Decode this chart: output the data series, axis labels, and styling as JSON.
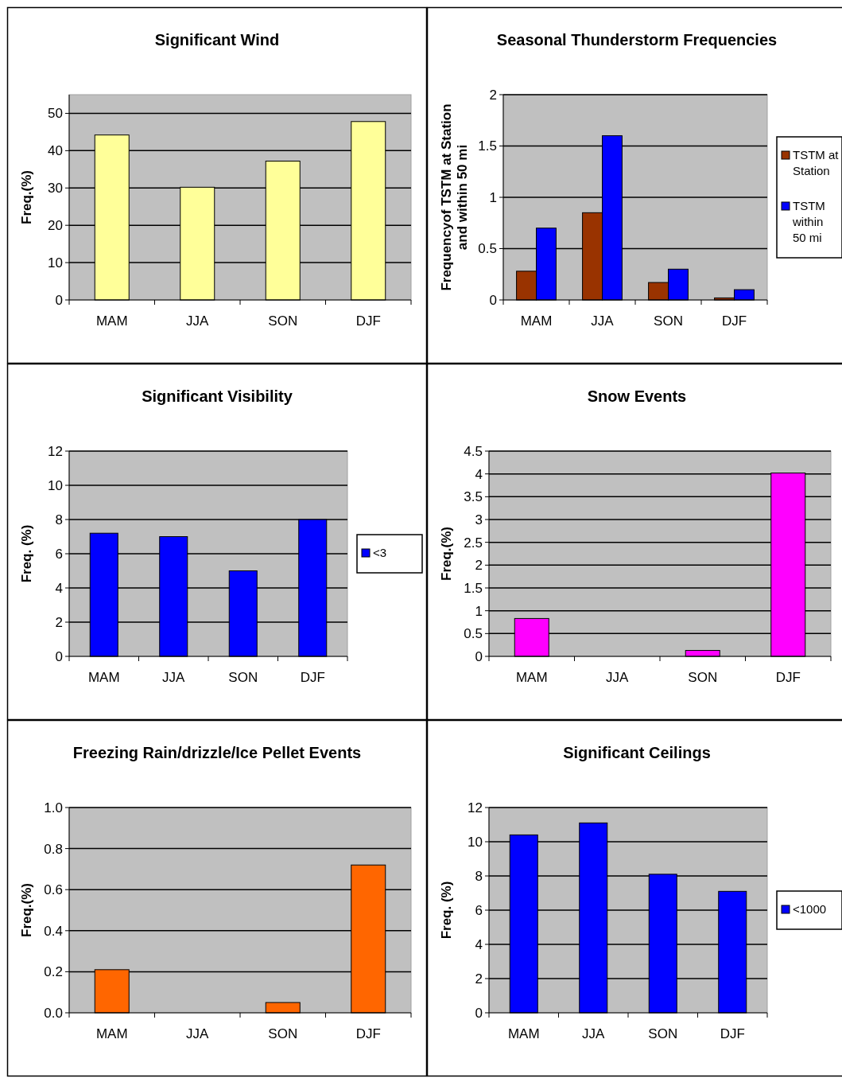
{
  "chart_data": [
    {
      "type": "bar",
      "title": "Significant Wind",
      "ylabel": "Freq.(%)",
      "categories": [
        "MAM",
        "JJA",
        "SON",
        "DJF"
      ],
      "series": [
        {
          "color": "#ffff99",
          "values": [
            44.2,
            30.2,
            37.2,
            47.8
          ]
        }
      ],
      "ylim": [
        0,
        55
      ],
      "yticks": [
        0,
        10,
        20,
        30,
        40,
        50
      ],
      "grid": "y",
      "legend": false
    },
    {
      "type": "bar",
      "title": "Seasonal Thunderstorm Frequencies",
      "ylabel": "Frequencyof TSTM at Station and within 50 mi",
      "categories": [
        "MAM",
        "JJA",
        "SON",
        "DJF"
      ],
      "series": [
        {
          "name": "TSTM at Station",
          "color": "#993300",
          "values": [
            0.28,
            0.85,
            0.17,
            0.02
          ]
        },
        {
          "name": "TSTM within 50 mi",
          "color": "#0000ff",
          "values": [
            0.7,
            1.6,
            0.3,
            0.1
          ]
        }
      ],
      "ylim": [
        0,
        2
      ],
      "yticks": [
        0,
        0.5,
        1,
        1.5,
        2
      ],
      "grid": "y",
      "legend": "right"
    },
    {
      "type": "bar",
      "title": "Significant Visibility",
      "ylabel": "Freq. (%)",
      "categories": [
        "MAM",
        "JJA",
        "SON",
        "DJF"
      ],
      "series": [
        {
          "name": "<3",
          "color": "#0000ff",
          "values": [
            7.2,
            7.0,
            5.0,
            8.0
          ]
        }
      ],
      "ylim": [
        0,
        12
      ],
      "yticks": [
        0,
        2,
        4,
        6,
        8,
        10,
        12
      ],
      "grid": "y",
      "legend": "right"
    },
    {
      "type": "bar",
      "title": "Snow Events",
      "ylabel": "Freq.(%)",
      "categories": [
        "MAM",
        "JJA",
        "SON",
        "DJF"
      ],
      "series": [
        {
          "color": "#ff00ff",
          "values": [
            0.83,
            0,
            0.13,
            4.02
          ]
        }
      ],
      "ylim": [
        0,
        4.5
      ],
      "yticks": [
        0,
        0.5,
        1,
        1.5,
        2,
        2.5,
        3,
        3.5,
        4,
        4.5
      ],
      "grid": "y",
      "legend": false
    },
    {
      "type": "bar",
      "title": "Freezing Rain/drizzle/Ice Pellet Events",
      "ylabel": "Freq.(%)",
      "categories": [
        "MAM",
        "JJA",
        "SON",
        "DJF"
      ],
      "series": [
        {
          "color": "#ff6600",
          "values": [
            0.21,
            0,
            0.05,
            0.72
          ]
        }
      ],
      "ylim": [
        0,
        1
      ],
      "yticks": [
        {
          "value": 0,
          "label": "0.0"
        },
        {
          "value": 0.2,
          "label": "0.2"
        },
        {
          "value": 0.4,
          "label": "0.4"
        },
        {
          "value": 0.6,
          "label": "0.6"
        },
        {
          "value": 0.8,
          "label": "0.8"
        },
        {
          "value": 1,
          "label": "1.0"
        }
      ],
      "grid": "y",
      "legend": false
    },
    {
      "type": "bar",
      "title": "Significant Ceilings",
      "ylabel": "Freq. (%)",
      "categories": [
        "MAM",
        "JJA",
        "SON",
        "DJF"
      ],
      "series": [
        {
          "name": "<1000",
          "color": "#0000ff",
          "values": [
            10.4,
            11.1,
            8.1,
            7.1
          ]
        }
      ],
      "ylim": [
        0,
        12
      ],
      "yticks": [
        0,
        2,
        4,
        6,
        8,
        10,
        12
      ],
      "grid": "y",
      "legend": "right"
    }
  ]
}
